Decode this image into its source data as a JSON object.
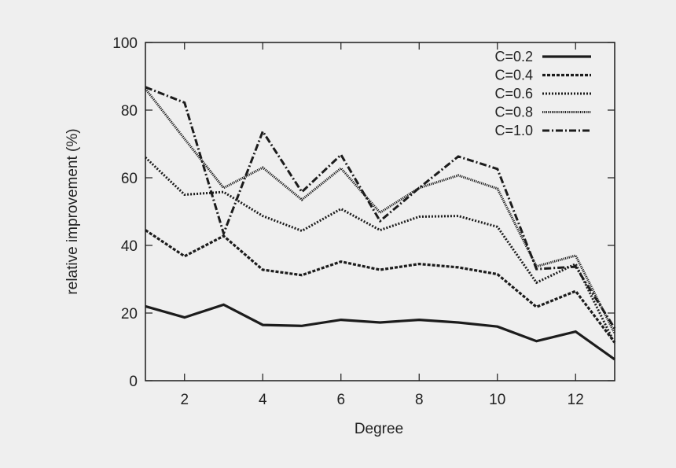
{
  "chart_data": {
    "type": "line",
    "title": "",
    "xlabel": "Degree",
    "ylabel": "relative improvement (%)",
    "xlim": [
      1,
      13
    ],
    "ylim": [
      0,
      100
    ],
    "xticks": [
      2,
      4,
      6,
      8,
      10,
      12
    ],
    "yticks": [
      0,
      20,
      40,
      60,
      80,
      100
    ],
    "grid": false,
    "legend_position": "top-right",
    "x": [
      1,
      2,
      3,
      4,
      5,
      6,
      7,
      8,
      9,
      10,
      11,
      12,
      13
    ],
    "series": [
      {
        "name": "C=0.2",
        "style": "solid",
        "values": [
          22.0,
          18.7,
          22.5,
          16.5,
          16.2,
          18.0,
          17.2,
          18.0,
          17.2,
          16.0,
          11.7,
          14.5,
          6.3
        ]
      },
      {
        "name": "C=0.4",
        "style": "dashed",
        "values": [
          44.5,
          36.8,
          42.8,
          32.8,
          31.2,
          35.2,
          32.8,
          34.5,
          33.5,
          31.5,
          21.8,
          26.5,
          11.3
        ]
      },
      {
        "name": "C=0.6",
        "style": "dotted",
        "values": [
          66.0,
          55.0,
          55.8,
          48.7,
          44.3,
          50.8,
          44.5,
          48.5,
          48.7,
          45.5,
          29.0,
          34.5,
          11.0
        ]
      },
      {
        "name": "C=0.8",
        "style": "fine-dotted",
        "values": [
          86.3,
          71.5,
          57.0,
          63.0,
          53.5,
          62.8,
          49.7,
          57.0,
          60.7,
          56.8,
          33.8,
          37.0,
          14.0
        ]
      },
      {
        "name": "C=1.0",
        "style": "dash-dot",
        "values": [
          86.8,
          82.2,
          43.5,
          73.7,
          55.8,
          66.8,
          47.2,
          57.0,
          66.3,
          62.6,
          33.0,
          33.7,
          15.5
        ]
      }
    ]
  },
  "colors": {
    "line": "#1c1c1c",
    "background": "#efefef",
    "frame": "#1c1c1c"
  }
}
